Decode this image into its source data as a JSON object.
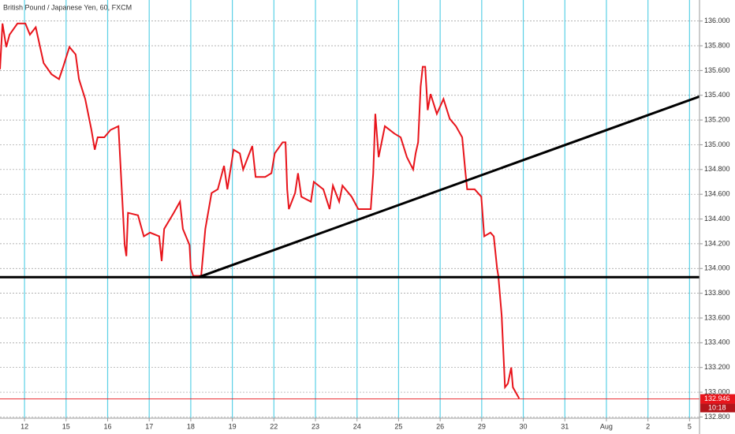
{
  "chart_data": {
    "type": "line",
    "title": "British Pound / Japanese Yen, 60, FXCM",
    "x": [
      -0.59,
      -0.53,
      -0.44,
      -0.36,
      -0.17,
      0.02,
      0.13,
      0.27,
      0.46,
      0.65,
      0.83,
      0.93,
      1.08,
      1.23,
      1.31,
      1.46,
      1.61,
      1.69,
      1.76,
      1.92,
      2.07,
      2.26,
      2.33,
      2.41,
      2.45,
      2.49,
      2.73,
      2.87,
      3.02,
      3.24,
      3.3,
      3.36,
      3.59,
      3.74,
      3.81,
      3.97,
      4.0,
      4.06,
      4.25,
      4.35,
      4.5,
      4.65,
      4.8,
      4.88,
      5.03,
      5.18,
      5.26,
      5.48,
      5.56,
      5.79,
      5.94,
      6.02,
      6.21,
      6.28,
      6.32,
      6.36,
      6.51,
      6.58,
      6.66,
      6.89,
      6.96,
      7.19,
      7.34,
      7.42,
      7.57,
      7.65,
      7.87,
      8.03,
      8.33,
      8.39,
      8.44,
      8.52,
      8.67,
      8.9,
      9.05,
      9.2,
      9.35,
      9.41,
      9.47,
      9.53,
      9.58,
      9.64,
      9.7,
      9.77,
      9.92,
      10.08,
      10.23,
      10.38,
      10.53,
      10.61,
      10.65,
      10.83,
      10.99,
      11.06,
      11.21,
      11.29,
      11.37,
      11.4,
      11.48,
      11.56,
      11.63,
      11.71,
      11.75,
      11.9
    ],
    "series": [
      {
        "color": "#e8141b",
        "values": [
          135.61,
          135.98,
          135.79,
          135.89,
          135.98,
          135.98,
          135.89,
          135.95,
          135.66,
          135.57,
          135.53,
          135.63,
          135.79,
          135.73,
          135.53,
          135.37,
          135.12,
          134.96,
          135.06,
          135.06,
          135.12,
          135.15,
          134.7,
          134.19,
          134.1,
          134.45,
          134.43,
          134.26,
          134.29,
          134.26,
          134.06,
          134.32,
          134.45,
          134.54,
          134.32,
          134.19,
          134.0,
          133.94,
          133.94,
          134.32,
          134.61,
          134.64,
          134.83,
          134.64,
          134.96,
          134.93,
          134.8,
          134.99,
          134.74,
          134.74,
          134.77,
          134.93,
          135.02,
          135.02,
          134.64,
          134.48,
          134.61,
          134.77,
          134.58,
          134.54,
          134.7,
          134.64,
          134.48,
          134.67,
          134.54,
          134.67,
          134.58,
          134.48,
          134.48,
          134.77,
          135.25,
          134.9,
          135.15,
          135.09,
          135.06,
          134.9,
          134.8,
          134.93,
          135.02,
          135.47,
          135.63,
          135.63,
          135.28,
          135.41,
          135.25,
          135.37,
          135.21,
          135.15,
          135.06,
          134.77,
          134.64,
          134.64,
          134.58,
          134.26,
          134.29,
          134.26,
          134.0,
          133.94,
          133.62,
          133.04,
          133.07,
          133.2,
          133.04,
          132.95
        ]
      }
    ],
    "xlim": [
      -0.59,
      16.24
    ],
    "xticks": [
      {
        "value": 0,
        "label": "12"
      },
      {
        "value": 1,
        "label": "15"
      },
      {
        "value": 2,
        "label": "16"
      },
      {
        "value": 3,
        "label": "17"
      },
      {
        "value": 4,
        "label": "18"
      },
      {
        "value": 5,
        "label": "19"
      },
      {
        "value": 6,
        "label": "22"
      },
      {
        "value": 7,
        "label": "23"
      },
      {
        "value": 8,
        "label": "24"
      },
      {
        "value": 9,
        "label": "25"
      },
      {
        "value": 10,
        "label": "26"
      },
      {
        "value": 11,
        "label": "29"
      },
      {
        "value": 12,
        "label": "30"
      },
      {
        "value": 13,
        "label": "31"
      },
      {
        "value": 14,
        "label": "Aug"
      },
      {
        "value": 15,
        "label": "2"
      },
      {
        "value": 16,
        "label": "5"
      }
    ],
    "ylim": [
      132.79,
      136.17
    ],
    "yticks": [
      {
        "value": 132.8,
        "label": "132.800"
      },
      {
        "value": 133.0,
        "label": "133.000"
      },
      {
        "value": 133.2,
        "label": "133.200"
      },
      {
        "value": 133.4,
        "label": "133.400"
      },
      {
        "value": 133.6,
        "label": "133.600"
      },
      {
        "value": 133.8,
        "label": "133.800"
      },
      {
        "value": 134.0,
        "label": "134.000"
      },
      {
        "value": 134.2,
        "label": "134.200"
      },
      {
        "value": 134.4,
        "label": "134.400"
      },
      {
        "value": 134.6,
        "label": "134.600"
      },
      {
        "value": 134.8,
        "label": "134.800"
      },
      {
        "value": 135.0,
        "label": "135.000"
      },
      {
        "value": 135.2,
        "label": "135.200"
      },
      {
        "value": 135.4,
        "label": "135.400"
      },
      {
        "value": 135.6,
        "label": "135.600"
      },
      {
        "value": 135.8,
        "label": "135.800"
      },
      {
        "value": 136.0,
        "label": "136.000"
      }
    ],
    "grid": true,
    "grid_color": "#5ad0e6",
    "horizontal_line": {
      "y": 133.93,
      "color": "#000000"
    },
    "trend_line": {
      "x": [
        4.19,
        16.24
      ],
      "y": [
        133.93,
        135.39
      ],
      "color": "#000000"
    },
    "current_price": {
      "value": 132.946,
      "label": "132.946",
      "color": "#e8141b"
    },
    "countdown": "10:18"
  }
}
